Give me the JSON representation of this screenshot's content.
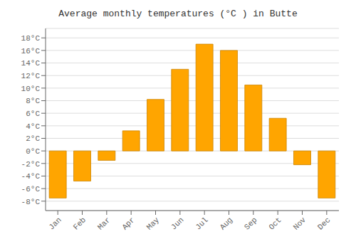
{
  "chart_data": {
    "type": "bar",
    "title": "Average monthly temperatures (°C ) in Butte",
    "categories": [
      "Jan",
      "Feb",
      "Mar",
      "Apr",
      "May",
      "Jun",
      "Jul",
      "Aug",
      "Sep",
      "Oct",
      "Nov",
      "Dec"
    ],
    "values": [
      -7.5,
      -4.8,
      -1.5,
      3.2,
      8.2,
      13.0,
      17.0,
      16.0,
      10.5,
      5.2,
      -2.2,
      -7.5
    ],
    "color": "#FFA500",
    "ylim": [
      -9.5,
      19.5
    ],
    "yticks": [
      {
        "value": -8,
        "label": "-8°C"
      },
      {
        "value": -6,
        "label": "-6°C"
      },
      {
        "value": -4,
        "label": "-4°C"
      },
      {
        "value": -2,
        "label": "-2°C"
      },
      {
        "value": 0,
        "label": "0°C"
      },
      {
        "value": 2,
        "label": "2°C"
      },
      {
        "value": 4,
        "label": "4°C"
      },
      {
        "value": 6,
        "label": "6°C"
      },
      {
        "value": 8,
        "label": "8°C"
      },
      {
        "value": 10,
        "label": "10°C"
      },
      {
        "value": 12,
        "label": "12°C"
      },
      {
        "value": 14,
        "label": "14°C"
      },
      {
        "value": 16,
        "label": "16°C"
      },
      {
        "value": 18,
        "label": "18°C"
      }
    ],
    "grid": true
  }
}
